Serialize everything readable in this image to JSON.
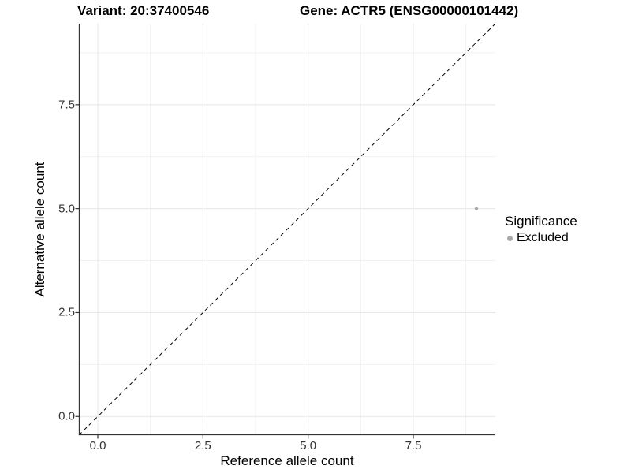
{
  "header": {
    "title_left": "Variant: 20:37400546",
    "title_right": "Gene: ACTR5 (ENSG00000101442)"
  },
  "chart_data": {
    "type": "scatter",
    "title_left": "Variant: 20:37400546",
    "title_right": "Gene: ACTR5 (ENSG00000101442)",
    "xlabel": "Reference allele count",
    "ylabel": "Alternative allele count",
    "xlim": [
      -0.45,
      9.45
    ],
    "ylim": [
      -0.45,
      9.45
    ],
    "x_ticks": [
      0.0,
      2.5,
      5.0,
      7.5
    ],
    "x_tick_labels": [
      "0.0",
      "2.5",
      "5.0",
      "7.5"
    ],
    "y_ticks": [
      0.0,
      2.5,
      5.0,
      7.5
    ],
    "y_tick_labels": [
      "0.0",
      "2.5",
      "5.0",
      "7.5"
    ],
    "x_minor_ticks": [
      1.25,
      3.75,
      6.25,
      8.75
    ],
    "y_minor_ticks": [
      1.25,
      3.75,
      6.25,
      8.75
    ],
    "grid": true,
    "reference_line": {
      "type": "identity",
      "style": "dashed",
      "color": "#000000"
    },
    "point_radius": 2.2,
    "series": [
      {
        "name": "Excluded",
        "color": "#a9a9a9",
        "points": [
          {
            "x": 9,
            "y": 5
          }
        ]
      }
    ],
    "legend": {
      "title": "Significance",
      "position": "right",
      "entries": [
        {
          "label": "Excluded",
          "color": "#a9a9a9"
        }
      ]
    }
  },
  "style": {
    "background": "#ffffff",
    "axis_line": "#333333",
    "tick_mark": "#333333",
    "grid_major": "#e7e7e7",
    "grid_minor": "#f2f2f2",
    "text": "#000000",
    "tick_label": "#333333"
  }
}
